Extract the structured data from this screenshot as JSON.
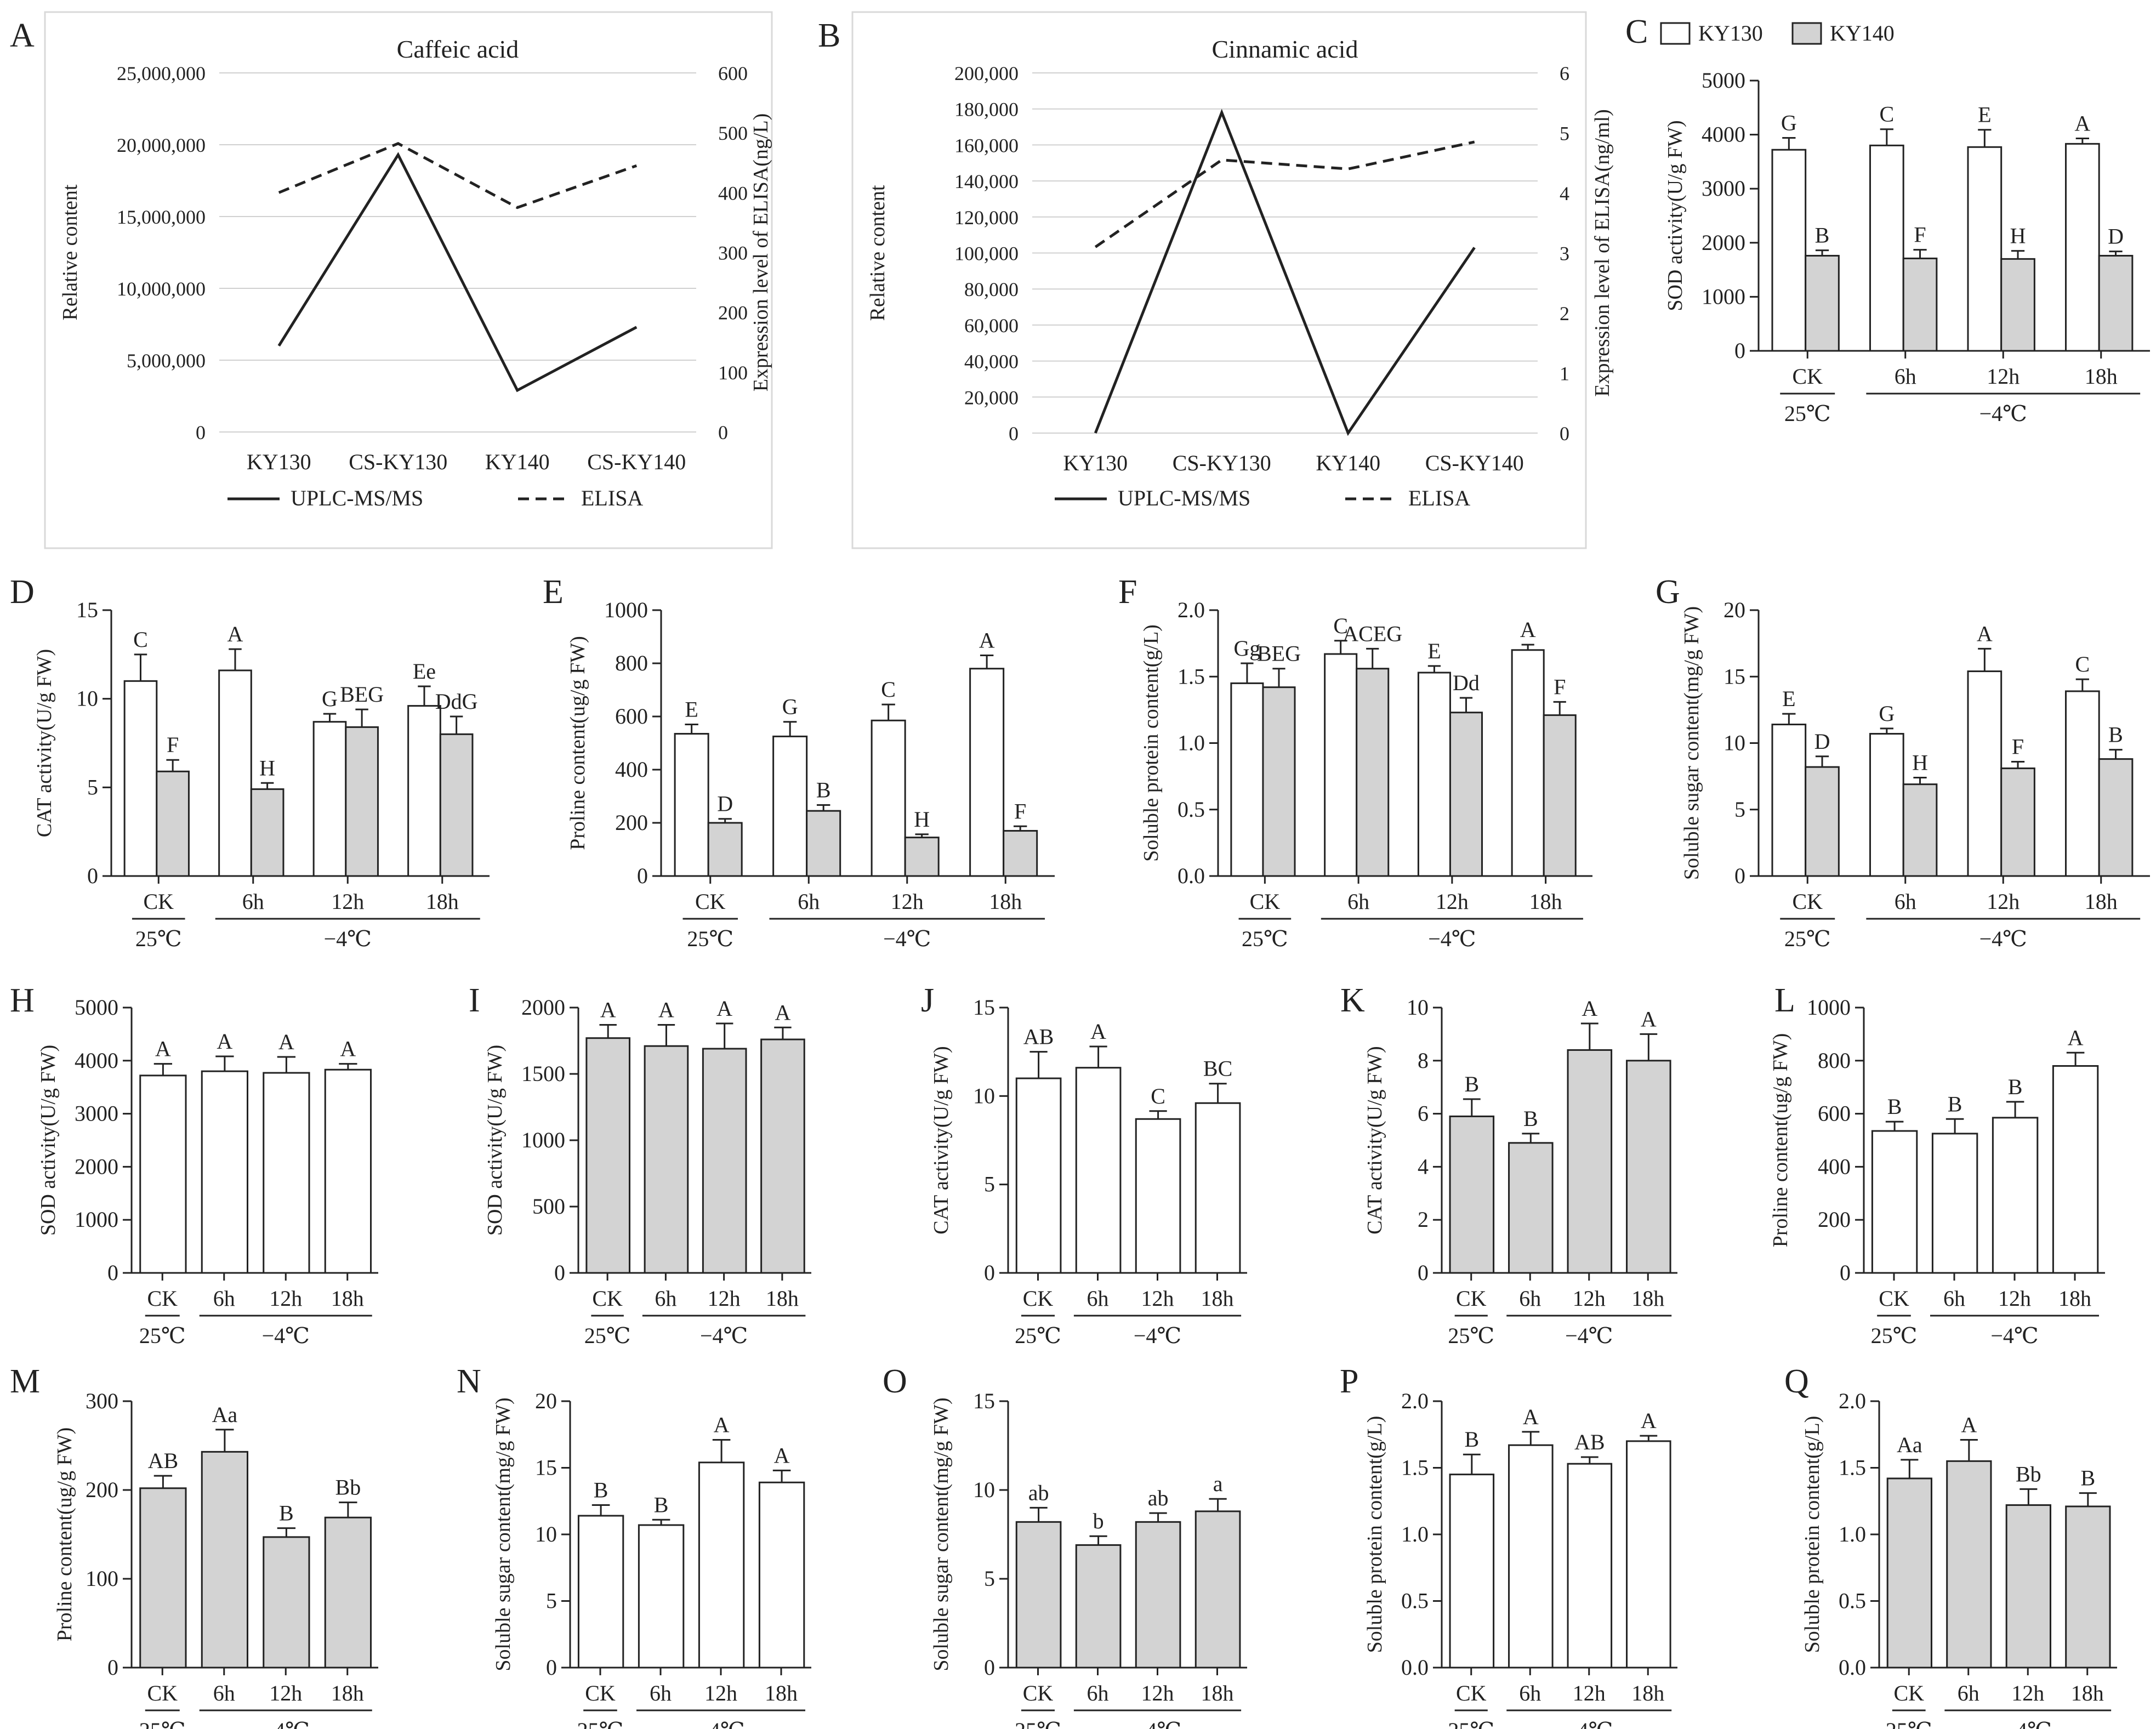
{
  "colors": {
    "white_bar": "#ffffff",
    "gray_bar": "#d3d3d3",
    "line": "#222222",
    "axis": "#222222"
  },
  "common": {
    "temp_control": "25℃",
    "temp_cold": "−4℃",
    "legend_ky130": "KY130",
    "legend_ky140": "KY140"
  },
  "chart_data": [
    {
      "id": "A",
      "type": "line",
      "title": "Caffeic acid",
      "categories": [
        "KY130",
        "CS-KY130",
        "KY140",
        "CS-KY140"
      ],
      "ylabel": "Relative content",
      "y2label": "Expression level of ELISA(ng/L)",
      "ylim": [
        0,
        25000000
      ],
      "yticks": [
        "0",
        "5,000,000",
        "10,000,000",
        "15,000,000",
        "20,000,000",
        "25,000,000"
      ],
      "y2lim": [
        0,
        600
      ],
      "y2ticks": [
        "0",
        "100",
        "200",
        "300",
        "400",
        "500",
        "600"
      ],
      "series": [
        {
          "name": "UPLC-MS/MS",
          "axis": "left",
          "style": "solid",
          "values": [
            6000000,
            19300000,
            2900000,
            7300000
          ]
        },
        {
          "name": "ELISA",
          "axis": "right",
          "style": "dashed",
          "values": [
            400,
            482,
            375,
            445
          ]
        }
      ]
    },
    {
      "id": "B",
      "type": "line",
      "title": "Cinnamic acid",
      "categories": [
        "KY130",
        "CS-KY130",
        "KY140",
        "CS-KY140"
      ],
      "ylabel": "Relative content",
      "y2label": "Expression level of ELISA(ng/ml)",
      "ylim": [
        0,
        200000
      ],
      "yticks": [
        "0",
        "20,000",
        "40,000",
        "60,000",
        "80,000",
        "100,000",
        "120,000",
        "140,000",
        "160,000",
        "180,000",
        "200,000"
      ],
      "y2lim": [
        0,
        6
      ],
      "y2ticks": [
        "0",
        "1",
        "2",
        "3",
        "4",
        "5",
        "6"
      ],
      "series": [
        {
          "name": "UPLC-MS/MS",
          "axis": "left",
          "style": "solid",
          "values": [
            0,
            178000,
            0,
            103000
          ]
        },
        {
          "name": "ELISA",
          "axis": "right",
          "style": "dashed",
          "values": [
            3.1,
            4.55,
            4.4,
            4.85
          ]
        }
      ]
    },
    {
      "id": "C",
      "type": "bar",
      "ylabel": "SOD activity(U/g FW)",
      "legend": true,
      "ylim": [
        0,
        5000
      ],
      "yticks": [
        "0",
        "1000",
        "2000",
        "3000",
        "4000",
        "5000"
      ],
      "categories": [
        "CK",
        "6h",
        "12h",
        "18h"
      ],
      "series": [
        {
          "name": "KY130",
          "fill": "white",
          "values": [
            3720,
            3800,
            3770,
            3830
          ],
          "errors": [
            220,
            300,
            320,
            100
          ],
          "labels": [
            "G",
            "C",
            "E",
            "A"
          ]
        },
        {
          "name": "KY140",
          "fill": "gray",
          "values": [
            1760,
            1710,
            1700,
            1760
          ],
          "errors": [
            100,
            160,
            150,
            80
          ],
          "labels": [
            "B",
            "F",
            "H",
            "D"
          ]
        }
      ]
    },
    {
      "id": "D",
      "type": "bar",
      "ylabel": "CAT activity(U/g FW)",
      "ylim": [
        0,
        15
      ],
      "yticks": [
        "0",
        "5",
        "10",
        "15"
      ],
      "categories": [
        "CK",
        "6h",
        "12h",
        "18h"
      ],
      "series": [
        {
          "name": "KY130",
          "fill": "white",
          "values": [
            11.0,
            11.6,
            8.7,
            9.6
          ],
          "errors": [
            1.5,
            1.2,
            0.45,
            1.1
          ],
          "labels": [
            "C",
            "A",
            "G",
            "Ee"
          ]
        },
        {
          "name": "KY140",
          "fill": "gray",
          "values": [
            5.9,
            4.9,
            8.4,
            8.0
          ],
          "errors": [
            0.65,
            0.35,
            1.0,
            1.0
          ],
          "labels": [
            "F",
            "H",
            "BEG",
            "DdG"
          ]
        }
      ]
    },
    {
      "id": "E",
      "type": "bar",
      "ylabel": "Proline content(ug/g FW)",
      "ylim": [
        0,
        1000
      ],
      "yticks": [
        "0",
        "200",
        "400",
        "600",
        "800",
        "1000"
      ],
      "categories": [
        "CK",
        "6h",
        "12h",
        "18h"
      ],
      "series": [
        {
          "name": "KY130",
          "fill": "white",
          "values": [
            535,
            525,
            585,
            780
          ],
          "errors": [
            35,
            55,
            60,
            50
          ],
          "labels": [
            "E",
            "G",
            "C",
            "A"
          ]
        },
        {
          "name": "KY140",
          "fill": "gray",
          "values": [
            200,
            245,
            145,
            170
          ],
          "errors": [
            15,
            22,
            12,
            17
          ],
          "labels": [
            "D",
            "B",
            "H",
            "F"
          ]
        }
      ]
    },
    {
      "id": "F",
      "type": "bar",
      "ylabel": "Soluble protein content(g/L)",
      "ylim": [
        0,
        2.0
      ],
      "yticks": [
        "0.0",
        "0.5",
        "1.0",
        "1.5",
        "2.0"
      ],
      "categories": [
        "CK",
        "6h",
        "12h",
        "18h"
      ],
      "series": [
        {
          "name": "KY130",
          "fill": "white",
          "values": [
            1.45,
            1.67,
            1.53,
            1.7
          ],
          "errors": [
            0.15,
            0.1,
            0.05,
            0.04
          ],
          "labels": [
            "Gg",
            "C",
            "E",
            "A"
          ]
        },
        {
          "name": "KY140",
          "fill": "gray",
          "values": [
            1.42,
            1.56,
            1.23,
            1.21
          ],
          "errors": [
            0.14,
            0.15,
            0.11,
            0.1
          ],
          "labels": [
            "BEG",
            "ACEG",
            "Dd",
            "F"
          ]
        }
      ]
    },
    {
      "id": "G",
      "type": "bar",
      "ylabel": "Soluble sugar content(mg/g FW)",
      "ylim": [
        0,
        20
      ],
      "yticks": [
        "0",
        "5",
        "10",
        "15",
        "20"
      ],
      "categories": [
        "CK",
        "6h",
        "12h",
        "18h"
      ],
      "series": [
        {
          "name": "KY130",
          "fill": "white",
          "values": [
            11.4,
            10.7,
            15.4,
            13.9
          ],
          "errors": [
            0.8,
            0.4,
            1.7,
            0.9
          ],
          "labels": [
            "E",
            "G",
            "A",
            "C"
          ]
        },
        {
          "name": "KY140",
          "fill": "gray",
          "values": [
            8.2,
            6.9,
            8.1,
            8.8
          ],
          "errors": [
            0.8,
            0.5,
            0.5,
            0.7
          ],
          "labels": [
            "D",
            "H",
            "F",
            "B"
          ]
        }
      ]
    },
    {
      "id": "H",
      "type": "bar",
      "ylabel": "SOD activity(U/g FW)",
      "ylim": [
        0,
        5000
      ],
      "yticks": [
        "0",
        "1000",
        "2000",
        "3000",
        "4000",
        "5000"
      ],
      "categories": [
        "CK",
        "6h",
        "12h",
        "18h"
      ],
      "series": [
        {
          "name": "KY130",
          "fill": "white",
          "values": [
            3720,
            3800,
            3770,
            3830
          ],
          "errors": [
            220,
            280,
            300,
            110
          ],
          "labels": [
            "A",
            "A",
            "A",
            "A"
          ]
        }
      ]
    },
    {
      "id": "I",
      "type": "bar",
      "ylabel": "SOD activity(U/g FW)",
      "ylim": [
        0,
        2000
      ],
      "yticks": [
        "0",
        "500",
        "1000",
        "1500",
        "2000"
      ],
      "categories": [
        "CK",
        "6h",
        "12h",
        "18h"
      ],
      "series": [
        {
          "name": "KY140",
          "fill": "gray",
          "values": [
            1770,
            1710,
            1690,
            1760
          ],
          "errors": [
            100,
            160,
            190,
            90
          ],
          "labels": [
            "A",
            "A",
            "A",
            "A"
          ]
        }
      ]
    },
    {
      "id": "J",
      "type": "bar",
      "ylabel": "CAT activity(U/g FW)",
      "ylim": [
        0,
        15
      ],
      "yticks": [
        "0",
        "5",
        "10",
        "15"
      ],
      "categories": [
        "CK",
        "6h",
        "12h",
        "18h"
      ],
      "series": [
        {
          "name": "KY130",
          "fill": "white",
          "values": [
            11.0,
            11.6,
            8.7,
            9.6
          ],
          "errors": [
            1.5,
            1.2,
            0.45,
            1.1
          ],
          "labels": [
            "AB",
            "A",
            "C",
            "BC"
          ]
        }
      ]
    },
    {
      "id": "K",
      "type": "bar",
      "ylabel": "CAT activity(U/g FW)",
      "ylim": [
        0,
        10
      ],
      "yticks": [
        "0",
        "2",
        "4",
        "6",
        "8",
        "10"
      ],
      "categories": [
        "CK",
        "6h",
        "12h",
        "18h"
      ],
      "series": [
        {
          "name": "KY140",
          "fill": "gray",
          "values": [
            5.9,
            4.9,
            8.4,
            8.0
          ],
          "errors": [
            0.65,
            0.35,
            1.0,
            1.0
          ],
          "labels": [
            "B",
            "B",
            "A",
            "A"
          ]
        }
      ]
    },
    {
      "id": "L",
      "type": "bar",
      "ylabel": "Proline content(ug/g FW)",
      "ylim": [
        0,
        1000
      ],
      "yticks": [
        "0",
        "200",
        "400",
        "600",
        "800",
        "1000"
      ],
      "categories": [
        "CK",
        "6h",
        "12h",
        "18h"
      ],
      "series": [
        {
          "name": "KY130",
          "fill": "white",
          "values": [
            535,
            525,
            585,
            780
          ],
          "errors": [
            35,
            55,
            60,
            50
          ],
          "labels": [
            "B",
            "B",
            "B",
            "A"
          ]
        }
      ]
    },
    {
      "id": "M",
      "type": "bar",
      "ylabel": "Proline content(ug/g FW)",
      "ylim": [
        0,
        300
      ],
      "yticks": [
        "0",
        "100",
        "200",
        "300"
      ],
      "categories": [
        "CK",
        "6h",
        "12h",
        "18h"
      ],
      "series": [
        {
          "name": "KY140",
          "fill": "gray",
          "values": [
            202,
            243,
            147,
            169
          ],
          "errors": [
            14,
            25,
            10,
            17
          ],
          "labels": [
            "AB",
            "Aa",
            "B",
            "Bb"
          ]
        }
      ]
    },
    {
      "id": "N",
      "type": "bar",
      "ylabel": "Soluble sugar content(mg/g FW)",
      "ylim": [
        0,
        20
      ],
      "yticks": [
        "0",
        "5",
        "10",
        "15",
        "20"
      ],
      "categories": [
        "CK",
        "6h",
        "12h",
        "18h"
      ],
      "series": [
        {
          "name": "KY130",
          "fill": "white",
          "values": [
            11.4,
            10.7,
            15.4,
            13.9
          ],
          "errors": [
            0.8,
            0.4,
            1.7,
            0.9
          ],
          "labels": [
            "B",
            "B",
            "A",
            "A"
          ]
        }
      ]
    },
    {
      "id": "O",
      "type": "bar",
      "ylabel": "Soluble sugar content(mg/g FW)",
      "ylim": [
        0,
        15
      ],
      "yticks": [
        "0",
        "5",
        "10",
        "15"
      ],
      "categories": [
        "CK",
        "6h",
        "12h",
        "18h"
      ],
      "series": [
        {
          "name": "KY140",
          "fill": "gray",
          "values": [
            8.2,
            6.9,
            8.2,
            8.8
          ],
          "errors": [
            0.8,
            0.5,
            0.5,
            0.7
          ],
          "labels": [
            "ab",
            "b",
            "ab",
            "a"
          ]
        }
      ]
    },
    {
      "id": "P",
      "type": "bar",
      "ylabel": "Soluble protein content(g/L)",
      "ylim": [
        0,
        2.0
      ],
      "yticks": [
        "0.0",
        "0.5",
        "1.0",
        "1.5",
        "2.0"
      ],
      "categories": [
        "CK",
        "6h",
        "12h",
        "18h"
      ],
      "series": [
        {
          "name": "KY130",
          "fill": "white",
          "values": [
            1.45,
            1.67,
            1.53,
            1.7
          ],
          "errors": [
            0.15,
            0.1,
            0.05,
            0.04
          ],
          "labels": [
            "B",
            "A",
            "AB",
            "A"
          ]
        }
      ]
    },
    {
      "id": "Q",
      "type": "bar",
      "ylabel": "Soluble protein content(g/L)",
      "ylim": [
        0,
        2.0
      ],
      "yticks": [
        "0.0",
        "0.5",
        "1.0",
        "1.5",
        "2.0"
      ],
      "categories": [
        "CK",
        "6h",
        "12h",
        "18h"
      ],
      "series": [
        {
          "name": "KY140",
          "fill": "gray",
          "values": [
            1.42,
            1.55,
            1.22,
            1.21
          ],
          "errors": [
            0.14,
            0.16,
            0.12,
            0.1
          ],
          "labels": [
            "Aa",
            "A",
            "Bb",
            "B"
          ]
        }
      ]
    }
  ]
}
